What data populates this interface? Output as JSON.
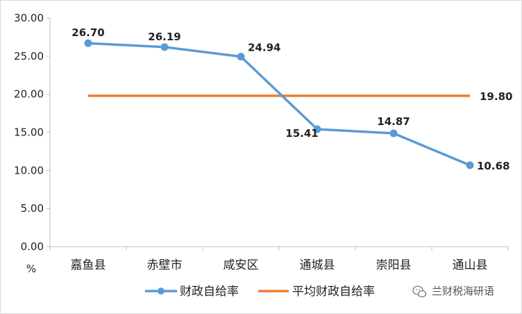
{
  "chart_data": {
    "type": "line",
    "categories": [
      "嘉鱼县",
      "赤壁市",
      "咸安区",
      "通城县",
      "崇阳县",
      "通山县"
    ],
    "series": [
      {
        "name": "财政自给率",
        "values": [
          26.7,
          26.19,
          24.94,
          15.41,
          14.87,
          10.68
        ],
        "color": "#5b9bd5",
        "marker": "circle"
      },
      {
        "name": "平均财政自给率",
        "values": [
          19.8,
          19.8,
          19.8,
          19.8,
          19.8,
          19.8
        ],
        "color": "#ed7d31",
        "marker": "none"
      }
    ],
    "data_labels": [
      "26.70",
      "26.19",
      "24.94",
      "15.41",
      "14.87",
      "10.68"
    ],
    "average_label": "19.80",
    "ylabel": "%",
    "ylim": [
      0,
      30
    ],
    "yticks": [
      "0.00",
      "5.00",
      "10.00",
      "15.00",
      "20.00",
      "25.00",
      "30.00"
    ],
    "grid": false,
    "legend_position": "bottom"
  },
  "watermark": {
    "icon": "wechat-icon",
    "text": "兰财税海研语"
  }
}
